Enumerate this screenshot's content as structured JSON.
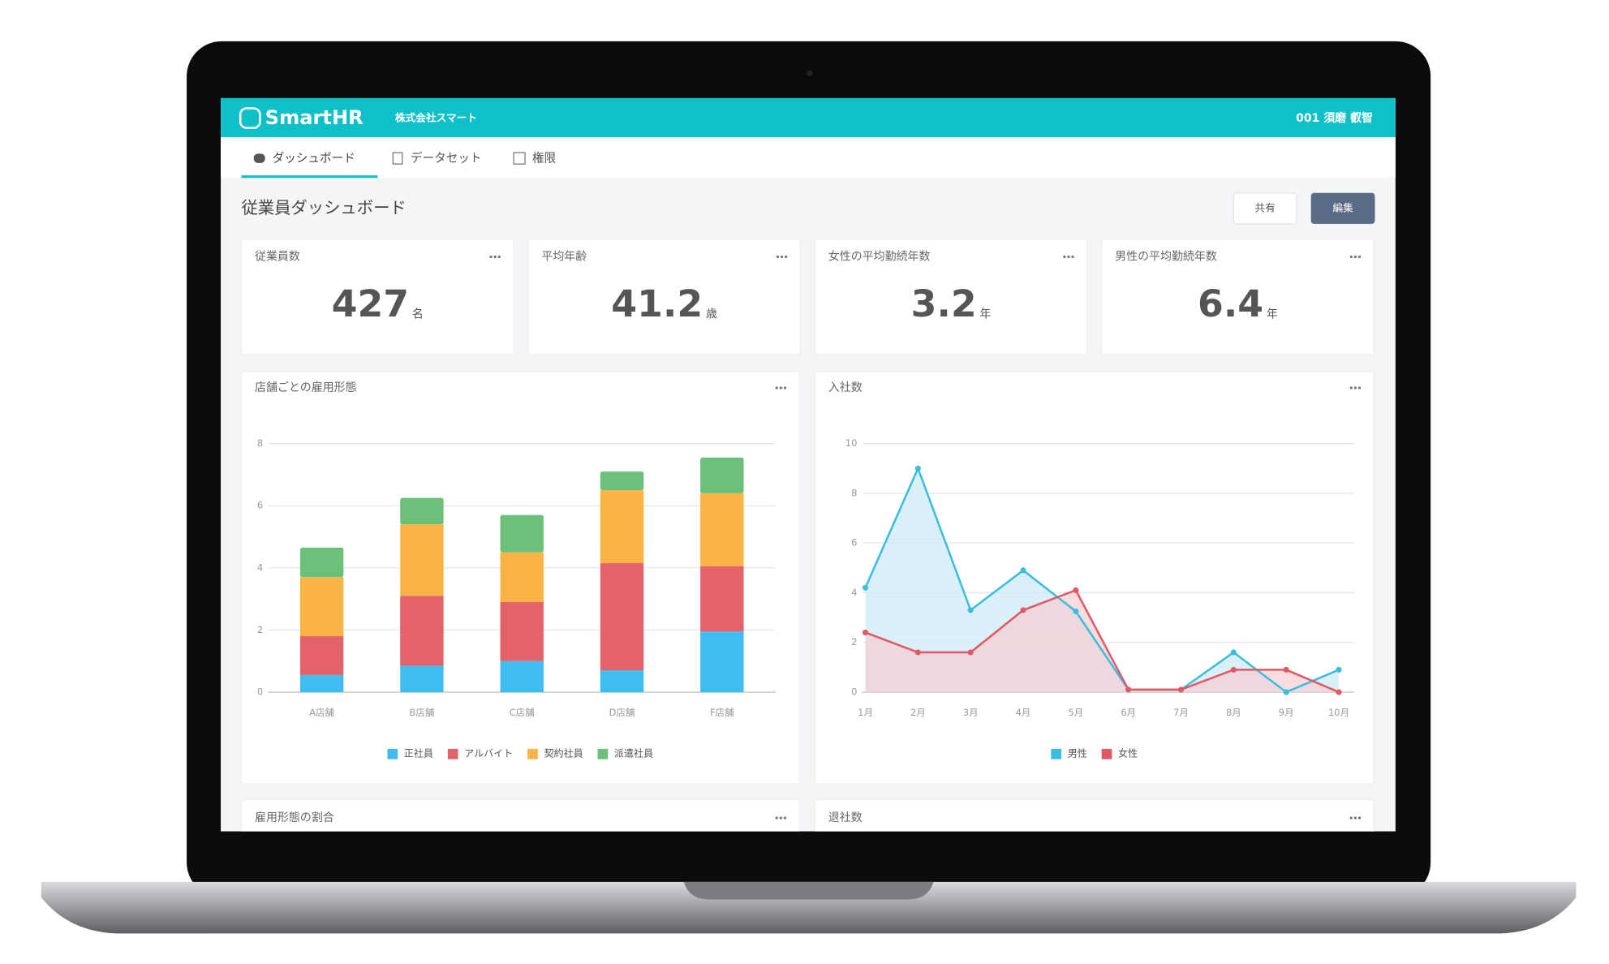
{
  "header": {
    "logo": "SmartHR",
    "company": "株式会社スマート",
    "user": "001 須磨 叡智"
  },
  "nav": [
    "ダッシュボード",
    "データセット",
    "権限"
  ],
  "page_title": "従業員ダッシュボード",
  "buttons": [
    "共有",
    "編集"
  ],
  "kpis": [
    {
      "label": "従業員数",
      "value": 427,
      "unit": "名"
    },
    {
      "label": "平均年齢",
      "value": 41.2,
      "unit": "歳"
    },
    {
      "label": "女性の平均勤続年数",
      "value": 3.2,
      "unit": "年"
    },
    {
      "label": "男性の平均勤続年数",
      "value": 6.4,
      "unit": "年"
    }
  ],
  "chart_data": [
    {
      "type": "bar",
      "title": "店舗ごとの雇用形態",
      "categories": [
        "A店舗",
        "B店舗",
        "C店舗",
        "D店舗",
        "F店舗"
      ],
      "series": [
        {
          "name": "正社員",
          "color": "#3fbdf2",
          "values": [
            0.55,
            0.85,
            1.0,
            0.7,
            1.95
          ]
        },
        {
          "name": "アルバイト",
          "color": "#e4626a",
          "values": [
            1.25,
            2.25,
            1.9,
            3.45,
            2.1
          ]
        },
        {
          "name": "契約社員",
          "color": "#f9b445",
          "values": [
            1.9,
            2.3,
            1.6,
            2.35,
            2.35
          ]
        },
        {
          "name": "派遣社員",
          "color": "#6cc17a",
          "values": [
            0.95,
            0.85,
            1.2,
            0.6,
            1.15
          ]
        }
      ],
      "ylim": [
        0,
        8
      ],
      "yticks": [
        0,
        2,
        4,
        6,
        8
      ],
      "grid": true
    },
    {
      "type": "line",
      "title": "入社数",
      "categories": [
        "1月",
        "2月",
        "3月",
        "4月",
        "5月",
        "6月",
        "7月",
        "8月",
        "9月",
        "10月"
      ],
      "series": [
        {
          "name": "男性",
          "color": "#3bbde0",
          "fill": "#cdebf7",
          "values": [
            4.2,
            9.0,
            3.3,
            4.9,
            3.25,
            0.1,
            0.1,
            1.6,
            0,
            0.9
          ]
        },
        {
          "name": "女性",
          "color": "#e05a66",
          "fill": "#f6d0d3",
          "values": [
            2.4,
            1.6,
            1.6,
            3.3,
            4.1,
            0.1,
            0.1,
            0.9,
            0.9,
            0
          ]
        }
      ],
      "ylim": [
        0,
        10
      ],
      "yticks": [
        0,
        2,
        4,
        6,
        8,
        10
      ],
      "grid": true
    }
  ],
  "more_cards": [
    "雇用形態の割合",
    "退社数"
  ]
}
